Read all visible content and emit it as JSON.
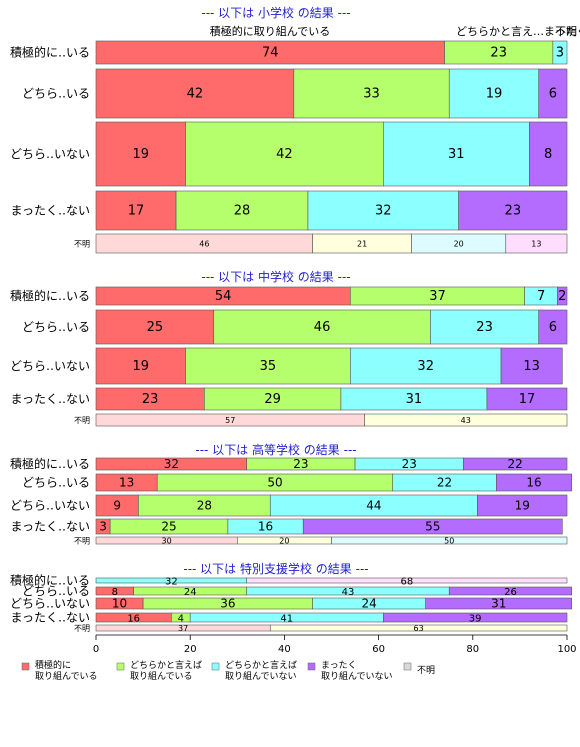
{
  "colors": {
    "c1": "#FF6B6B",
    "c2": "#B4FF6B",
    "c3": "#8CFFFF",
    "c4": "#B46BFF",
    "light": [
      "#FFD9D9",
      "#FFFFDD",
      "#DDFCFF",
      "#FFDDFF"
    ],
    "title": "#1f1fd6"
  },
  "top_labels": {
    "left": "積極的に取り組んでいる",
    "right": "どちらかと言え…",
    "overlap": "まったく…",
    "tail": "不明"
  },
  "legend": [
    {
      "line1": "積極的に",
      "line2": "取り組んでいる",
      "color": "#FF6B6B"
    },
    {
      "line1": "どちらかと言えば",
      "line2": "取り組んでいる",
      "color": "#B4FF6B"
    },
    {
      "line1": "どちらかと言えば",
      "line2": "取り組んでいない",
      "color": "#8CFFFF"
    },
    {
      "line1": "まったく",
      "line2": "取り組んでいない",
      "color": "#B46BFF"
    },
    {
      "line1": "不明",
      "line2": "",
      "color": "#D9D9D9"
    }
  ],
  "chart_data": {
    "type": "bar",
    "orientation": "horizontal-stacked-percent",
    "xlim": [
      0,
      100
    ],
    "xticks": [
      0,
      20,
      40,
      60,
      80,
      100
    ],
    "series_names": [
      "積極的に取り組んでいる",
      "どちらかと言えば取り組んでいる",
      "どちらかと言えば取り組んでいない",
      "まったく取り組んでいない"
    ],
    "panels": [
      {
        "title": "--- 以下は 小学校 の結果 ---",
        "rows": [
          {
            "label": "積極的に‥いる",
            "values": [
              74,
              23,
              3,
              0
            ],
            "labels": [
              "74",
              "23",
              "3",
              ""
            ]
          },
          {
            "label": "どちら‥いる",
            "values": [
              42,
              33,
              19,
              6
            ],
            "labels": [
              "42",
              "33",
              "19",
              "6"
            ]
          },
          {
            "label": "どちら‥いない",
            "values": [
              19,
              42,
              31,
              8
            ],
            "labels": [
              "19",
              "42",
              "31",
              "8"
            ]
          },
          {
            "label": "まったく‥ない",
            "values": [
              17,
              28,
              32,
              23
            ],
            "labels": [
              "17",
              "28",
              "32",
              "23"
            ]
          },
          {
            "label": "不明",
            "values": [
              46,
              21,
              20,
              13
            ],
            "labels": [
              "46",
              "21",
              "20",
              "13"
            ],
            "unknown": true
          }
        ]
      },
      {
        "title": "--- 以下は 中学校 の結果 ---",
        "rows": [
          {
            "label": "積極的に‥いる",
            "values": [
              54,
              37,
              7,
              2
            ],
            "labels": [
              "54",
              "37",
              "7",
              "2"
            ]
          },
          {
            "label": "どちら‥いる",
            "values": [
              25,
              46,
              23,
              6
            ],
            "labels": [
              "25",
              "46",
              "23",
              "6"
            ]
          },
          {
            "label": "どちら‥いない",
            "values": [
              19,
              35,
              32,
              13
            ],
            "labels": [
              "19",
              "35",
              "32",
              "13"
            ]
          },
          {
            "label": "まったく‥ない",
            "values": [
              23,
              29,
              31,
              17
            ],
            "labels": [
              "23",
              "29",
              "31",
              "17"
            ]
          },
          {
            "label": "不明",
            "values": [
              57,
              43,
              0,
              0
            ],
            "labels": [
              "57",
              "43",
              "",
              ""
            ],
            "unknown": true
          }
        ]
      },
      {
        "title": "--- 以下は 高等学校 の結果 ---",
        "rows": [
          {
            "label": "積極的に‥いる",
            "values": [
              32,
              23,
              23,
              22
            ],
            "labels": [
              "32",
              "23",
              "23",
              "22"
            ]
          },
          {
            "label": "どちら‥いる",
            "values": [
              13,
              50,
              22,
              16
            ],
            "labels": [
              "13",
              "50",
              "22",
              "16"
            ]
          },
          {
            "label": "どちら‥いない",
            "values": [
              9,
              28,
              44,
              19
            ],
            "labels": [
              "9",
              "28",
              "44",
              "19"
            ]
          },
          {
            "label": "まったく‥ない",
            "values": [
              3,
              25,
              16,
              55
            ],
            "labels": [
              "3",
              "25",
              "16",
              "55"
            ]
          },
          {
            "label": "不明",
            "values": [
              30,
              20,
              50,
              0
            ],
            "labels": [
              "30",
              "20",
              "50",
              ""
            ],
            "unknown": true
          }
        ]
      },
      {
        "title": "--- 以下は 特別支援学校 の結果 ---",
        "rows": [
          {
            "label": "積極的に‥いる",
            "values": [
              32,
              68,
              0,
              0
            ],
            "labels": [
              "32",
              "68",
              "",
              ""
            ],
            "colorSet": [
              2,
              2
            ]
          },
          {
            "label": "どちら‥いる",
            "values": [
              8,
              24,
              43,
              26
            ],
            "labels": [
              "8",
              "24",
              "43",
              "26"
            ]
          },
          {
            "label": "どちら‥いない",
            "values": [
              10,
              36,
              24,
              31
            ],
            "labels": [
              "10",
              "36",
              "24",
              "31"
            ]
          },
          {
            "label": "まったく‥ない",
            "values": [
              16,
              4,
              41,
              39
            ],
            "labels": [
              "16",
              "4",
              "41",
              "39"
            ]
          },
          {
            "label": "不明",
            "values": [
              37,
              63,
              0,
              0
            ],
            "labels": [
              "37",
              "63",
              "",
              ""
            ],
            "unknown": true
          }
        ]
      }
    ]
  }
}
